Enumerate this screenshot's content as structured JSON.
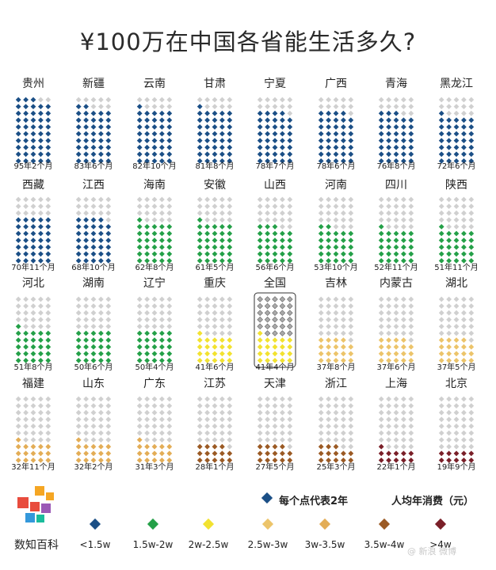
{
  "title": "¥100万在中国各省能生活多久?",
  "legend": {
    "dot_note": "每个点代表2年",
    "unit_note": "人均年消费（元）",
    "items": [
      {
        "label": "<1.5w",
        "color": "#1b4f86"
      },
      {
        "label": "1.5w-2w",
        "color": "#24a048"
      },
      {
        "label": "2w-2.5w",
        "color": "#f2e230"
      },
      {
        "label": "2.5w-3w",
        "color": "#ecc46a"
      },
      {
        "label": "3w-3.5w",
        "color": "#e3ad56"
      },
      {
        "label": "3.5w-4w",
        "color": "#9b5a24"
      },
      {
        "label": ">4w",
        "color": "#7a1f28"
      }
    ]
  },
  "brand": "数知百科",
  "watermark": "@ 新浪 微博",
  "colors": {
    "empty": "#d0d0d0",
    "national_empty": "#a8a8a8"
  },
  "chart_data": {
    "type": "waffle",
    "total_dots_per_column": 50,
    "dot_represents_years": 2,
    "series": [
      {
        "name": "贵州",
        "value": "95年2个月",
        "years": 95.17,
        "color_class": 0
      },
      {
        "name": "新疆",
        "value": "83年6个月",
        "years": 83.5,
        "color_class": 0
      },
      {
        "name": "云南",
        "value": "82年10个月",
        "years": 82.83,
        "color_class": 0
      },
      {
        "name": "甘肃",
        "value": "81年8个月",
        "years": 81.67,
        "color_class": 0
      },
      {
        "name": "宁夏",
        "value": "78年7个月",
        "years": 78.58,
        "color_class": 0
      },
      {
        "name": "广西",
        "value": "78年6个月",
        "years": 78.5,
        "color_class": 0
      },
      {
        "name": "青海",
        "value": "76年8个月",
        "years": 76.67,
        "color_class": 0
      },
      {
        "name": "黑龙江",
        "value": "72年6个月",
        "years": 72.5,
        "color_class": 0
      },
      {
        "name": "西藏",
        "value": "70年11个月",
        "years": 70.92,
        "color_class": 0
      },
      {
        "name": "江西",
        "value": "68年10个月",
        "years": 68.83,
        "color_class": 0
      },
      {
        "name": "海南",
        "value": "62年8个月",
        "years": 62.67,
        "color_class": 1
      },
      {
        "name": "安徽",
        "value": "61年5个月",
        "years": 61.42,
        "color_class": 1
      },
      {
        "name": "山西",
        "value": "56年6个月",
        "years": 56.5,
        "color_class": 1
      },
      {
        "name": "河南",
        "value": "53年10个月",
        "years": 53.83,
        "color_class": 1
      },
      {
        "name": "四川",
        "value": "52年11个月",
        "years": 52.92,
        "color_class": 1
      },
      {
        "name": "陕西",
        "value": "51年11个月",
        "years": 51.92,
        "color_class": 1
      },
      {
        "name": "河北",
        "value": "51年8个月",
        "years": 51.67,
        "color_class": 1
      },
      {
        "name": "湖南",
        "value": "50年6个月",
        "years": 50.5,
        "color_class": 1
      },
      {
        "name": "辽宁",
        "value": "50年4个月",
        "years": 50.33,
        "color_class": 1
      },
      {
        "name": "重庆",
        "value": "41年6个月",
        "years": 41.5,
        "color_class": 2
      },
      {
        "name": "全国",
        "value": "41年4个月",
        "years": 41.33,
        "color_class": 2,
        "national": true
      },
      {
        "name": "吉林",
        "value": "37年8个月",
        "years": 37.67,
        "color_class": 3
      },
      {
        "name": "内蒙古",
        "value": "37年6个月",
        "years": 37.5,
        "color_class": 3
      },
      {
        "name": "湖北",
        "value": "37年5个月",
        "years": 37.42,
        "color_class": 3
      },
      {
        "name": "福建",
        "value": "32年11个月",
        "years": 32.92,
        "color_class": 4
      },
      {
        "name": "山东",
        "value": "32年2个月",
        "years": 32.17,
        "color_class": 4
      },
      {
        "name": "广东",
        "value": "31年3个月",
        "years": 31.25,
        "color_class": 4
      },
      {
        "name": "江苏",
        "value": "28年1个月",
        "years": 28.08,
        "color_class": 5
      },
      {
        "name": "天津",
        "value": "27年5个月",
        "years": 27.42,
        "color_class": 5
      },
      {
        "name": "浙江",
        "value": "25年3个月",
        "years": 25.25,
        "color_class": 5
      },
      {
        "name": "上海",
        "value": "22年1个月",
        "years": 22.08,
        "color_class": 6
      },
      {
        "name": "北京",
        "value": "19年9个月",
        "years": 19.75,
        "color_class": 6
      }
    ]
  }
}
